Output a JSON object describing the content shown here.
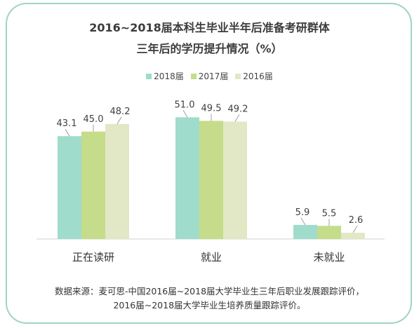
{
  "title_line1": "2016~2018届本科生毕业半年后准备考研群体",
  "title_line2": "三年后的学历提升情况（%）",
  "source_line1": "数据来源：麦可思-中国2016届~2018届大学毕业生三年后职业发展跟踪评价，",
  "source_line2": "2016届~2018届大学毕业生培养质量跟踪评价。",
  "chart_data": {
    "type": "bar",
    "title": "2016~2018届本科生毕业半年后准备考研群体三年后的学历提升情况（%）",
    "categories": [
      "正在读研",
      "就业",
      "未就业"
    ],
    "series": [
      {
        "name": "2018届",
        "color": "#9fdccb",
        "values": [
          43.1,
          51.0,
          5.9
        ],
        "labels": [
          "43.1",
          "51.0",
          "5.9"
        ]
      },
      {
        "name": "2017届",
        "color": "#c5dc8a",
        "values": [
          45.0,
          49.5,
          5.5
        ],
        "labels": [
          "45.0",
          "49.5",
          "5.5"
        ]
      },
      {
        "name": "2016届",
        "color": "#e2e7c6",
        "values": [
          48.2,
          49.2,
          2.6
        ],
        "labels": [
          "48.2",
          "49.2",
          "2.6"
        ]
      }
    ],
    "ylim": [
      0,
      60
    ],
    "legend": "top-center",
    "grid": false
  }
}
